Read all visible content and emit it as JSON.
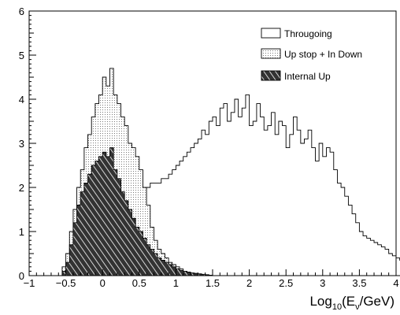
{
  "chart_data": {
    "type": "histogram",
    "title": "",
    "xlabel": "Log₁₀(Eν/GeV)",
    "ylabel": "",
    "xlim": [
      -1,
      4
    ],
    "ylim": [
      0,
      6
    ],
    "xticks": [
      "−1",
      "−0.5",
      "0",
      "0.5",
      "1",
      "1.5",
      "2",
      "2.5",
      "3",
      "3.5",
      "4"
    ],
    "yticks": [
      "0",
      "1",
      "2",
      "3",
      "4",
      "5",
      "6"
    ],
    "grid": false,
    "legend_position": "top-right",
    "bin_width": 0.05,
    "bin_start": -0.6,
    "series": [
      {
        "name": "Througoing",
        "style": "outline",
        "fill": "#ffffff",
        "values": [
          0.0,
          0.05,
          0.1,
          0.2,
          0.3,
          0.4,
          0.55,
          0.7,
          0.9,
          1.0,
          1.2,
          1.3,
          1.4,
          1.5,
          1.5,
          1.6,
          1.6,
          1.7,
          1.7,
          1.8,
          1.8,
          1.9,
          1.9,
          2.0,
          2.0,
          2.1,
          2.1,
          2.1,
          2.2,
          2.2,
          2.3,
          2.4,
          2.5,
          2.6,
          2.7,
          2.8,
          2.9,
          3.0,
          3.1,
          3.3,
          3.2,
          3.5,
          3.6,
          3.4,
          3.8,
          3.9,
          3.5,
          3.7,
          4.0,
          3.6,
          3.8,
          4.1,
          3.4,
          3.5,
          3.9,
          3.6,
          3.3,
          3.4,
          3.7,
          3.2,
          3.5,
          3.4,
          2.9,
          3.2,
          3.6,
          3.3,
          3.0,
          3.1,
          3.3,
          2.9,
          2.6,
          3.0,
          2.7,
          2.9,
          2.8,
          2.4,
          2.1,
          2.0,
          1.8,
          1.6,
          1.4,
          1.2,
          1.0,
          0.9,
          0.85,
          0.8,
          0.75,
          0.7,
          0.65,
          0.6,
          0.5,
          0.45,
          0.4,
          0.35,
          0.3,
          0.25,
          0.2,
          0.15,
          0.1,
          0.05,
          0.02
        ]
      },
      {
        "name": "Up stop + In Down",
        "style": "dotted",
        "fill": "#d8d8d8",
        "values": [
          0.0,
          0.2,
          0.5,
          1.0,
          1.5,
          2.0,
          2.4,
          2.9,
          3.2,
          3.6,
          3.9,
          4.1,
          4.5,
          4.3,
          4.7,
          4.1,
          3.9,
          3.6,
          3.4,
          3.0,
          2.9,
          2.7,
          2.4,
          2.0,
          1.6,
          1.1,
          0.8,
          0.6,
          0.5,
          0.4,
          0.3,
          0.25,
          0.2,
          0.15,
          0.1,
          0.08,
          0.06,
          0.05,
          0.03,
          0.02,
          0.01
        ]
      },
      {
        "name": "Internal Up",
        "style": "hatched",
        "fill": "#555555",
        "values": [
          0.0,
          0.1,
          0.3,
          0.7,
          1.2,
          1.6,
          1.9,
          2.1,
          2.3,
          2.5,
          2.6,
          2.7,
          2.8,
          2.7,
          2.9,
          2.4,
          2.2,
          1.9,
          1.7,
          1.5,
          1.3,
          1.1,
          1.0,
          0.85,
          0.7,
          0.6,
          0.5,
          0.4,
          0.35,
          0.3,
          0.25,
          0.2,
          0.15,
          0.12,
          0.1,
          0.08,
          0.06,
          0.05,
          0.04,
          0.03,
          0.02,
          0.01
        ]
      }
    ]
  }
}
